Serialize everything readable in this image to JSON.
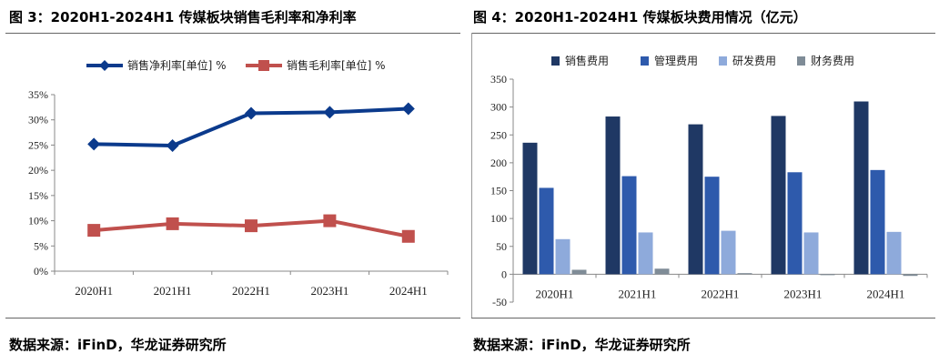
{
  "figure1": {
    "title": "图 3：2020H1-2024H1 传媒板块销售毛利率和净利率",
    "source": "数据来源：iFinD，华龙证券研究所"
  },
  "figure2": {
    "title": "图 4：2020H1-2024H1 传媒板块费用情况（亿元）",
    "source": "数据来源：iFinD，华龙证券研究所"
  },
  "chart_data": [
    {
      "type": "line",
      "categories": [
        "2020H1",
        "2021H1",
        "2022H1",
        "2023H1",
        "2024H1"
      ],
      "series": [
        {
          "name": "销售净利率[单位] %",
          "values": [
            25.2,
            24.9,
            31.3,
            31.5,
            32.2
          ],
          "color": "#0b3a8c",
          "marker": "diamond"
        },
        {
          "name": "销售毛利率[单位] %",
          "values": [
            8.1,
            9.4,
            9.0,
            10.0,
            6.9
          ],
          "color": "#c0504d",
          "marker": "square"
        }
      ],
      "y_ticks": [
        "0%",
        "5%",
        "10%",
        "15%",
        "20%",
        "25%",
        "30%",
        "35%"
      ],
      "ylim": [
        0,
        35
      ],
      "legend_position": "top",
      "grid": false
    },
    {
      "type": "bar",
      "categories": [
        "2020H1",
        "2021H1",
        "2022H1",
        "2023H1",
        "2024H1"
      ],
      "series": [
        {
          "name": "销售费用",
          "values": [
            236,
            283,
            269,
            284,
            310
          ],
          "color": "#1f3864"
        },
        {
          "name": "管理费用",
          "values": [
            155,
            176,
            175,
            183,
            187
          ],
          "color": "#2e5aac"
        },
        {
          "name": "研发费用",
          "values": [
            63,
            75,
            78,
            75,
            76
          ],
          "color": "#8eaadb"
        },
        {
          "name": "财务费用",
          "values": [
            8,
            10,
            2,
            -1,
            -3
          ],
          "color": "#7f8c97"
        }
      ],
      "y_ticks": [
        "-50",
        "0",
        "50",
        "100",
        "150",
        "200",
        "250",
        "300",
        "350"
      ],
      "ylim": [
        -50,
        350
      ],
      "legend_position": "top",
      "grid": false
    }
  ]
}
